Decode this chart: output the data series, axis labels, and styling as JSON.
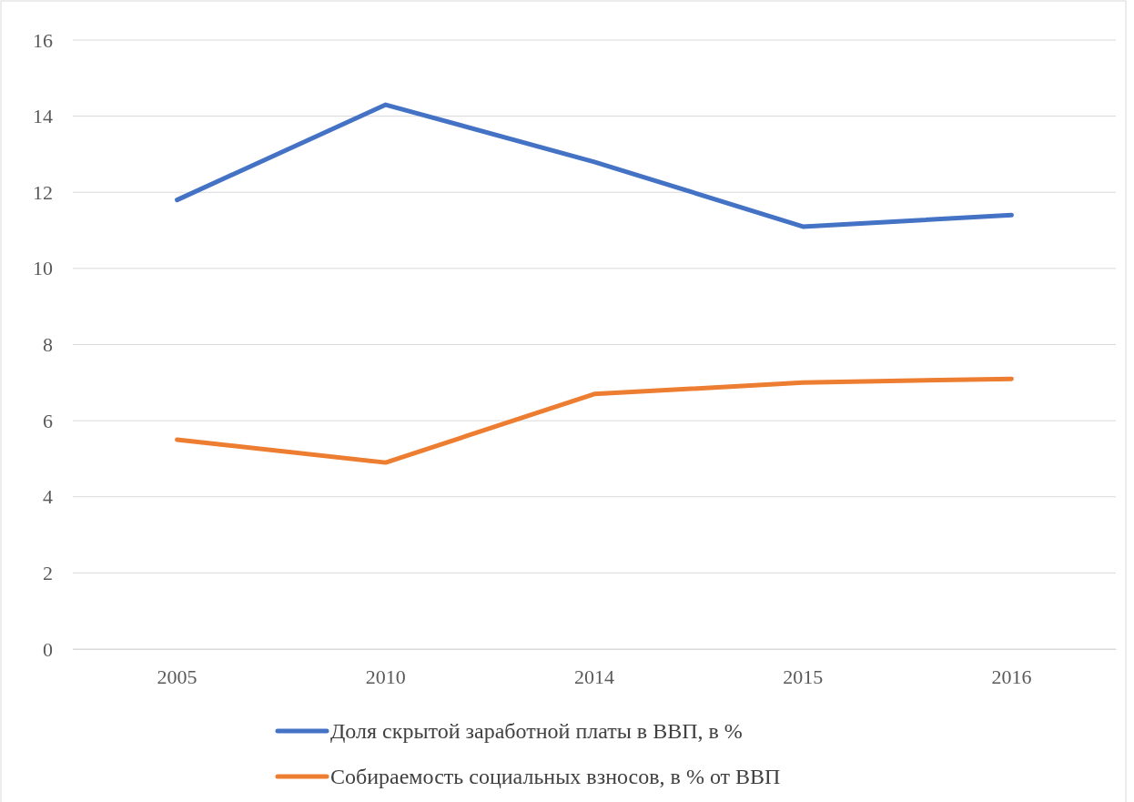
{
  "chart_data": {
    "type": "line",
    "categories": [
      "2005",
      "2010",
      "2014",
      "2015",
      "2016"
    ],
    "series": [
      {
        "name": "Доля скрытой заработной платы в ВВП, в %",
        "color": "#4472c4",
        "values": [
          11.8,
          14.3,
          12.8,
          11.1,
          11.4
        ]
      },
      {
        "name": "Собираемость социальных взносов, в % от ВВП",
        "color": "#ed7d31",
        "values": [
          5.5,
          4.9,
          6.7,
          7.0,
          7.1
        ]
      }
    ],
    "ylim": [
      0,
      16
    ],
    "yticks": [
      0,
      2,
      4,
      6,
      8,
      10,
      12,
      14,
      16
    ],
    "grid": "y",
    "legend": "bottom",
    "marker": "none",
    "line_style": "solid"
  }
}
